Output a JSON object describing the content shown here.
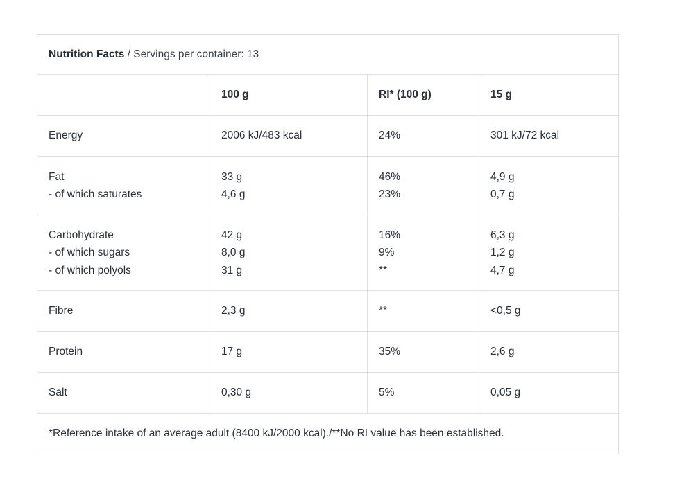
{
  "table": {
    "title_strong": "Nutrition Facts",
    "title_rest": " / Servings per container: 13",
    "headers": [
      "",
      "100 g",
      "RI* (100 g)",
      "15 g"
    ],
    "rows": [
      {
        "labels": [
          "Energy"
        ],
        "per100": [
          "2006 kJ/483 kcal"
        ],
        "ri": [
          "24%"
        ],
        "per15": [
          "301 kJ/72 kcal"
        ]
      },
      {
        "labels": [
          "Fat",
          "- of which saturates"
        ],
        "per100": [
          "33 g",
          "4,6 g"
        ],
        "ri": [
          "46%",
          "23%"
        ],
        "per15": [
          "4,9 g",
          "0,7 g"
        ]
      },
      {
        "labels": [
          "Carbohydrate",
          "- of which sugars",
          "- of which polyols"
        ],
        "per100": [
          "42 g",
          "8,0 g",
          "31 g"
        ],
        "ri": [
          "16%",
          "9%",
          "**"
        ],
        "per15": [
          "6,3 g",
          "1,2 g",
          "4,7 g"
        ]
      },
      {
        "labels": [
          "Fibre"
        ],
        "per100": [
          "2,3 g"
        ],
        "ri": [
          "**"
        ],
        "per15": [
          "<0,5 g"
        ]
      },
      {
        "labels": [
          "Protein"
        ],
        "per100": [
          "17 g"
        ],
        "ri": [
          "35%"
        ],
        "per15": [
          "2,6 g"
        ]
      },
      {
        "labels": [
          "Salt"
        ],
        "per100": [
          "0,30 g"
        ],
        "ri": [
          "5%"
        ],
        "per15": [
          "0,05 g"
        ]
      }
    ],
    "footnote": "*Reference intake of an average adult (8400 kJ/2000 kcal)./**No RI value has been established."
  }
}
